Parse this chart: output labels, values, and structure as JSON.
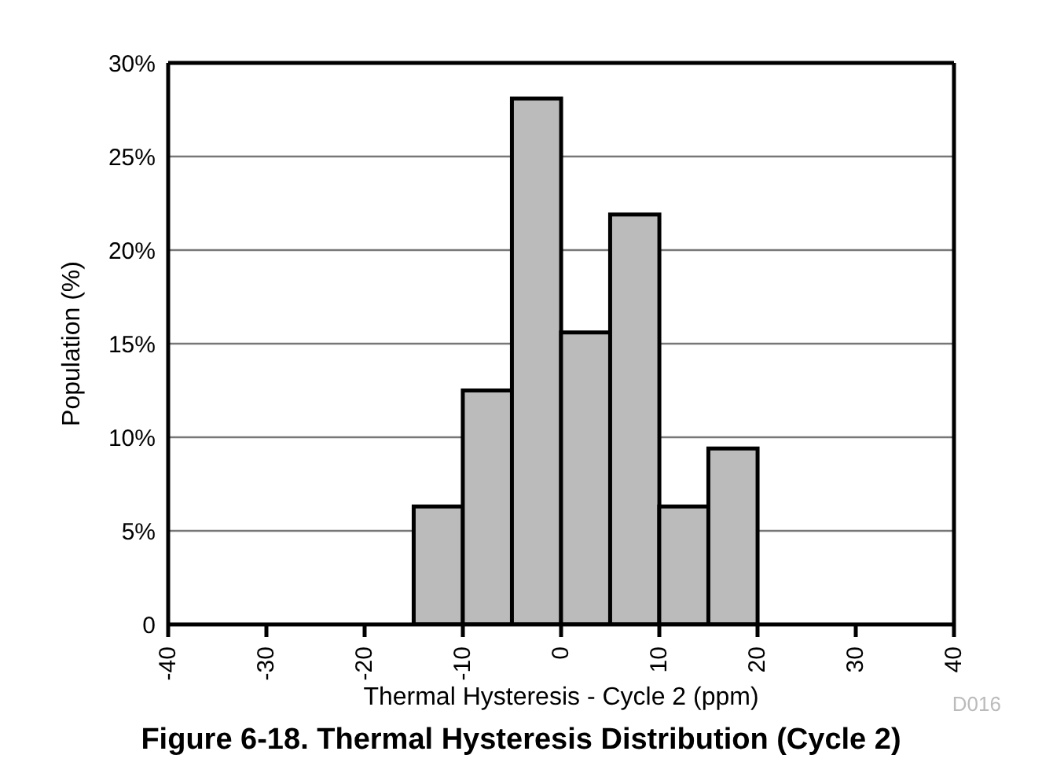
{
  "chart_data": {
    "type": "histogram",
    "title": "Figure 6-18. Thermal Hysteresis Distribution (Cycle 2)",
    "xlabel": "Thermal Hysteresis - Cycle 2 (ppm)",
    "ylabel": "Population (%)",
    "bins": [
      -15,
      -10,
      -5,
      0,
      5,
      10,
      15,
      20
    ],
    "values": [
      6.3,
      12.5,
      28.1,
      15.6,
      21.9,
      6.3,
      9.4
    ],
    "color": "#bbbbbb",
    "xlim": [
      -40,
      40
    ],
    "xticks": [
      -40,
      -30,
      -20,
      -10,
      0,
      10,
      20,
      30,
      40
    ],
    "ylim": [
      0,
      30
    ],
    "yticks": [
      0,
      {
        "value": 5,
        "label": "5%"
      },
      {
        "value": 10,
        "label": "10%"
      },
      {
        "value": 15,
        "label": "15%"
      },
      {
        "value": 20,
        "label": "20%"
      },
      {
        "value": 25,
        "label": "25%"
      },
      {
        "value": 30,
        "label": "30%"
      }
    ],
    "grid": "y",
    "annotations": [
      "D016"
    ]
  }
}
